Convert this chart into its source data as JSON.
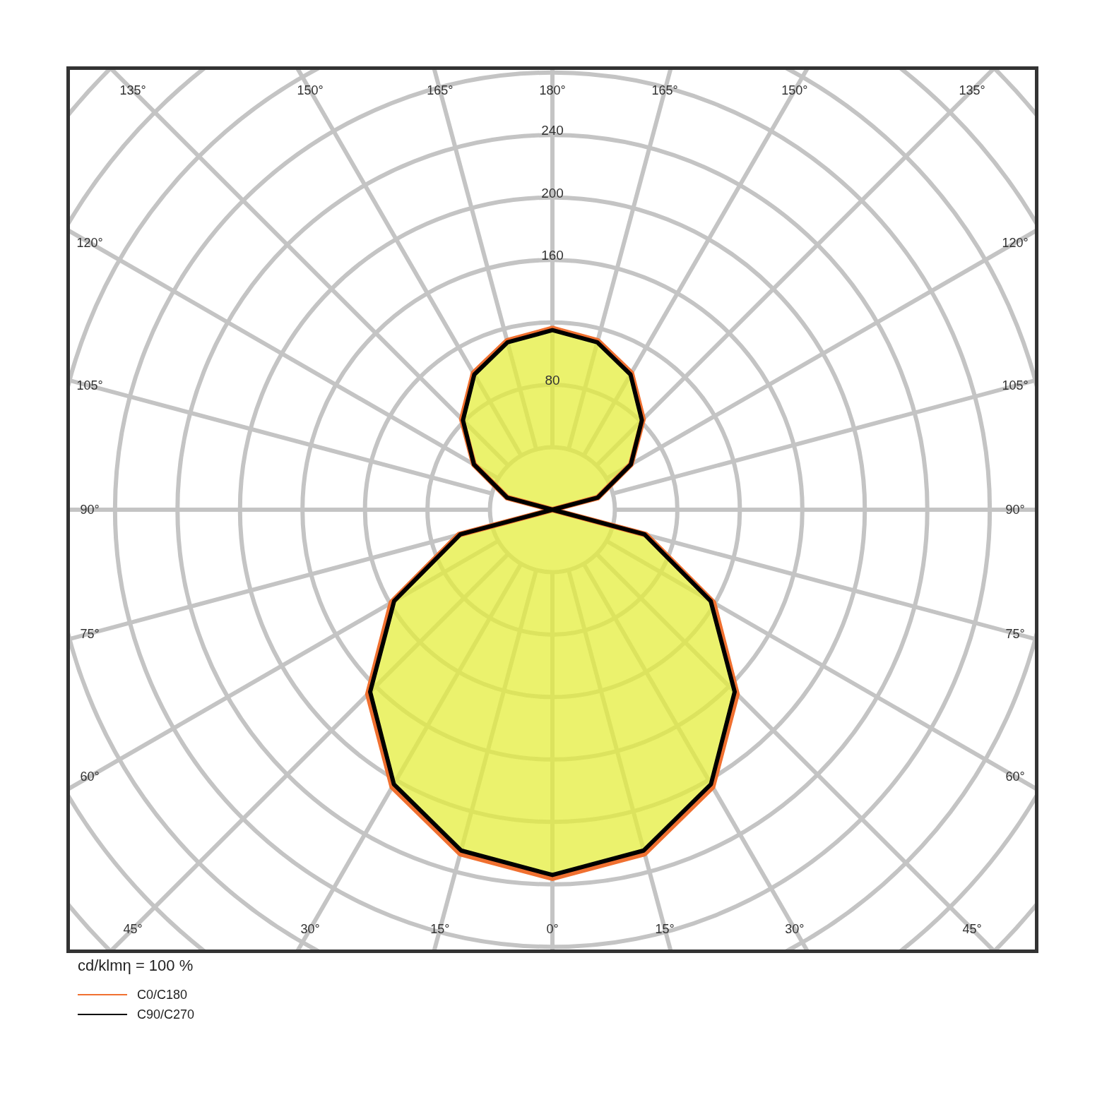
{
  "chart_data": {
    "type": "radar",
    "categories": [
      "180°",
      "165°",
      "150°",
      "135°",
      "120°",
      "105°",
      "90°",
      "75°",
      "60°",
      "45°",
      "30°",
      "15°",
      "0°",
      "15°",
      "30°",
      "45°",
      "60°",
      "75°",
      "90°",
      "105°",
      "120°",
      "135°",
      "150°",
      "165°"
    ],
    "series": [
      {
        "name": "C0/C180",
        "color": "#f07030",
        "values": [
          116,
          112,
          101,
          82,
          58,
          30,
          0,
          62,
          119,
          167,
          205,
          228,
          236,
          228,
          205,
          167,
          119,
          62,
          0,
          30,
          58,
          82,
          101,
          112
        ]
      },
      {
        "name": "C90/C270",
        "color": "#000000",
        "values": [
          115,
          111,
          100,
          81,
          58,
          30,
          0,
          61,
          117,
          165,
          203,
          226,
          234,
          226,
          203,
          165,
          117,
          61,
          0,
          30,
          58,
          81,
          100,
          111
        ]
      }
    ],
    "ylim": [
      0,
      440
    ],
    "yticks": [
      80,
      160,
      200,
      240
    ],
    "grid": true,
    "legend": "bottom left",
    "annotations": [
      "cd/klmη = 100 %"
    ]
  }
}
